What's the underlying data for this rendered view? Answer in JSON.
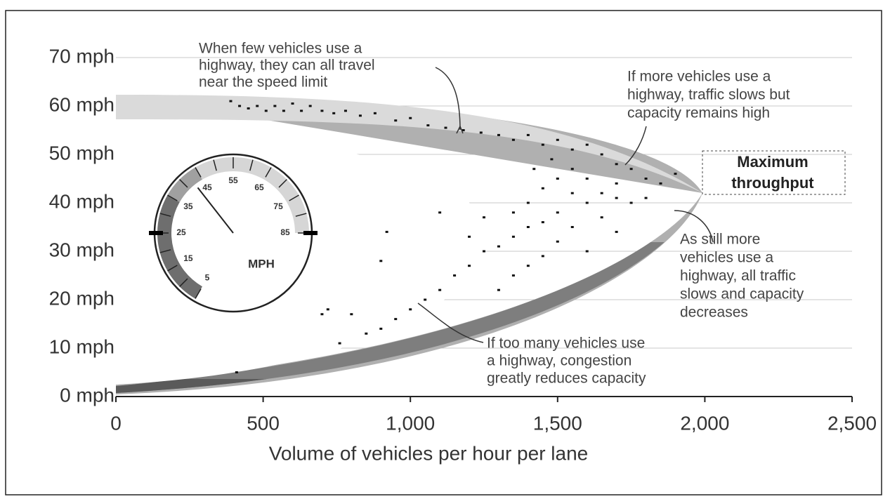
{
  "chart_data": {
    "type": "scatter",
    "x_label": "Volume of vehicles per hour per lane",
    "xlim": [
      0,
      2500
    ],
    "ylim": [
      0,
      70
    ],
    "xticks": [
      0,
      500,
      {
        "value": 1000,
        "label": "1,000"
      },
      {
        "value": 1500,
        "label": "1,500"
      },
      {
        "value": 2000,
        "label": "2,000"
      },
      {
        "value": 2500,
        "label": "2,500"
      }
    ],
    "yticks": [
      {
        "value": 0,
        "label": "0 mph"
      },
      {
        "value": 10,
        "label": "10 mph"
      },
      {
        "value": 20,
        "label": "20 mph"
      },
      {
        "value": 30,
        "label": "30 mph"
      },
      {
        "value": 40,
        "label": "40 mph"
      },
      {
        "value": 50,
        "label": "50 mph"
      },
      {
        "value": 60,
        "label": "60 mph"
      },
      {
        "value": 70,
        "label": "70 mph"
      }
    ],
    "grid": true,
    "color": "#111111",
    "x": [
      390,
      420,
      450,
      480,
      510,
      540,
      570,
      600,
      630,
      660,
      700,
      740,
      780,
      830,
      880,
      950,
      1000,
      1060,
      1120,
      1180,
      1240,
      1300,
      1350,
      1400,
      1450,
      1500,
      1550,
      1600,
      1650,
      1700,
      1750,
      1800,
      1850,
      1900,
      1700,
      1650,
      1600,
      1550,
      1500,
      1450,
      1400,
      1350,
      1300,
      1500,
      1550,
      1600,
      1450,
      1400,
      1350,
      1650,
      1700,
      1750,
      1500,
      1450,
      1400,
      1350,
      1300,
      1250,
      1200,
      1150,
      1100,
      1050,
      1000,
      950,
      900,
      850,
      800,
      760,
      720,
      700,
      900,
      920,
      1250,
      1200,
      1550,
      1600,
      1800,
      1700,
      1480,
      1420,
      410,
      1100
    ],
    "values": [
      61,
      60,
      59.5,
      60,
      59,
      60,
      59,
      60.5,
      59,
      60,
      59,
      58.5,
      59,
      58,
      58.5,
      57,
      57.5,
      56,
      55.5,
      55,
      54.5,
      54,
      53,
      54,
      52,
      53,
      51,
      52,
      50,
      48,
      47,
      45,
      44,
      46,
      44,
      42,
      40,
      42,
      38,
      36,
      35,
      33,
      31,
      45,
      47,
      45,
      43,
      40,
      38,
      37,
      41,
      40,
      32,
      29,
      27,
      25,
      22,
      30,
      27,
      25,
      22,
      20,
      18,
      16,
      14,
      13,
      17,
      11,
      18,
      17,
      28,
      34,
      37,
      33,
      35,
      30,
      41,
      34,
      49,
      47,
      5,
      38
    ],
    "annotations": [
      {
        "lines": [
          "When few vehicles use a",
          "highway, they can all travel",
          "near the speed limit"
        ]
      },
      {
        "lines": [
          "If more vehicles use a",
          "highway, traffic slows but",
          "capacity remains high"
        ]
      },
      {
        "lines": [
          "Maximum",
          "throughput"
        ]
      },
      {
        "lines": [
          "As still more",
          "vehicles use a",
          "highway, all traffic",
          "slows and capacity",
          "decreases"
        ]
      },
      {
        "lines": [
          "If too many vehicles use",
          "a highway, congestion",
          "greatly reduces capacity"
        ]
      }
    ],
    "gauge": {
      "label": "MPH",
      "ticks": [
        5,
        15,
        25,
        35,
        45,
        55,
        65,
        75,
        85
      ]
    }
  }
}
